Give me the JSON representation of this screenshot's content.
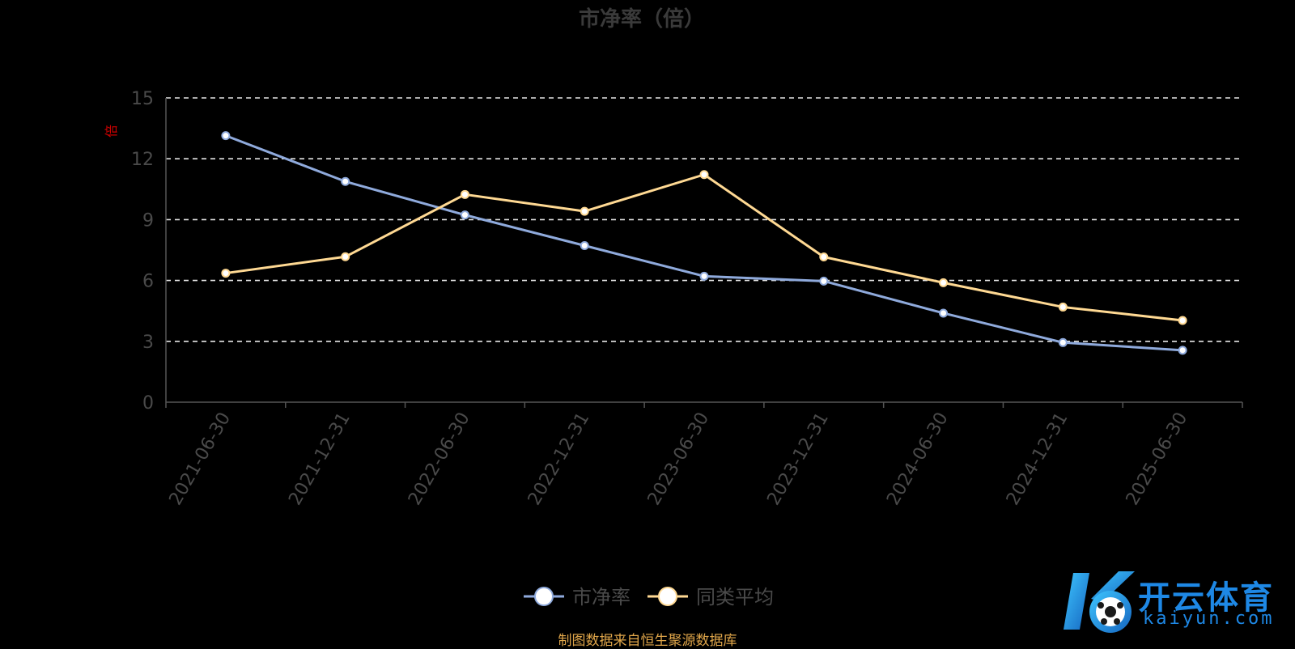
{
  "chart_data": {
    "type": "line",
    "title": "市净率（倍）",
    "unit_label": "倍",
    "categories": [
      "2021-06-30",
      "2021-12-31",
      "2022-06-30",
      "2022-12-31",
      "2023-06-30",
      "2023-12-31",
      "2024-06-30",
      "2024-12-31",
      "2025-06-30"
    ],
    "series": [
      {
        "name": "市净率",
        "color": "#8faadc",
        "values": [
          13.14,
          10.88,
          9.23,
          7.72,
          6.21,
          5.97,
          4.39,
          2.94,
          2.56
        ]
      },
      {
        "name": "同类平均",
        "color": "#ffd993",
        "values": [
          6.36,
          7.17,
          10.24,
          9.41,
          11.22,
          7.16,
          5.89,
          4.69,
          4.03
        ]
      }
    ],
    "ylim": [
      0,
      15
    ],
    "yticks": [
      0,
      3,
      6,
      9,
      12,
      15
    ],
    "grid": true,
    "legend_position": "bottom-center"
  },
  "source_note": "制图数据来自恒生聚源数据库",
  "watermark": {
    "cn": "开云体育",
    "en": "kaiyun.com",
    "color": "#1e88e5"
  }
}
